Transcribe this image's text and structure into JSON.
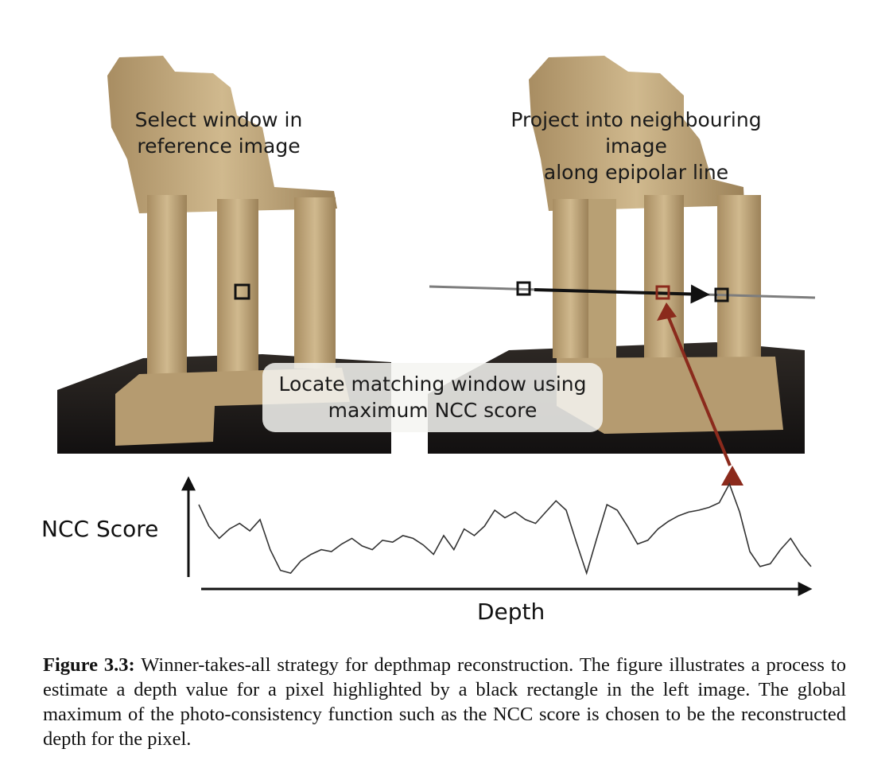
{
  "callouts": {
    "reference": "Select window in\nreference image",
    "project": "Project into neighbouring image\nalong epipolar line",
    "locate": "Locate matching window using\nmaximum NCC score"
  },
  "chart_data": {
    "type": "line",
    "xlabel": "Depth",
    "ylabel": "NCC Score",
    "grid": false,
    "x": [
      0,
      1,
      2,
      3,
      4,
      5,
      6,
      7,
      8,
      9,
      10,
      11,
      12,
      13,
      14,
      15,
      16,
      17,
      18,
      19,
      20,
      21,
      22,
      23,
      24,
      25,
      26,
      27,
      28,
      29,
      30,
      31,
      32,
      33,
      34,
      35,
      36,
      37,
      38,
      39,
      40,
      41,
      42,
      43,
      44,
      45,
      46,
      47,
      48,
      49,
      50,
      51,
      52,
      53,
      54,
      55,
      56,
      57,
      58,
      59,
      60
    ],
    "y": [
      0.78,
      0.55,
      0.42,
      0.52,
      0.58,
      0.5,
      0.62,
      0.3,
      0.08,
      0.05,
      0.18,
      0.25,
      0.3,
      0.28,
      0.36,
      0.42,
      0.34,
      0.3,
      0.4,
      0.38,
      0.45,
      0.42,
      0.35,
      0.25,
      0.45,
      0.3,
      0.52,
      0.45,
      0.55,
      0.72,
      0.64,
      0.7,
      0.62,
      0.58,
      0.7,
      0.82,
      0.72,
      0.38,
      0.05,
      0.42,
      0.78,
      0.72,
      0.55,
      0.36,
      0.4,
      0.52,
      0.6,
      0.66,
      0.7,
      0.72,
      0.75,
      0.8,
      1.0,
      0.7,
      0.28,
      0.12,
      0.15,
      0.3,
      0.42,
      0.25,
      0.12
    ]
  },
  "caption": {
    "label": "Figure 3.3:",
    "text": " Winner-takes-all strategy for depthmap reconstruction. The figure illustrates a process to estimate a depth value for a pixel highlighted by a black rectangle in the left image. The global maximum of the photo-consistency function such as the NCC score is chosen to be the reconstructed depth for the pixel."
  },
  "colors": {
    "epipolar_match": "#8b2a1c",
    "stone": "#c7ae82",
    "ground": "#1b1816"
  }
}
